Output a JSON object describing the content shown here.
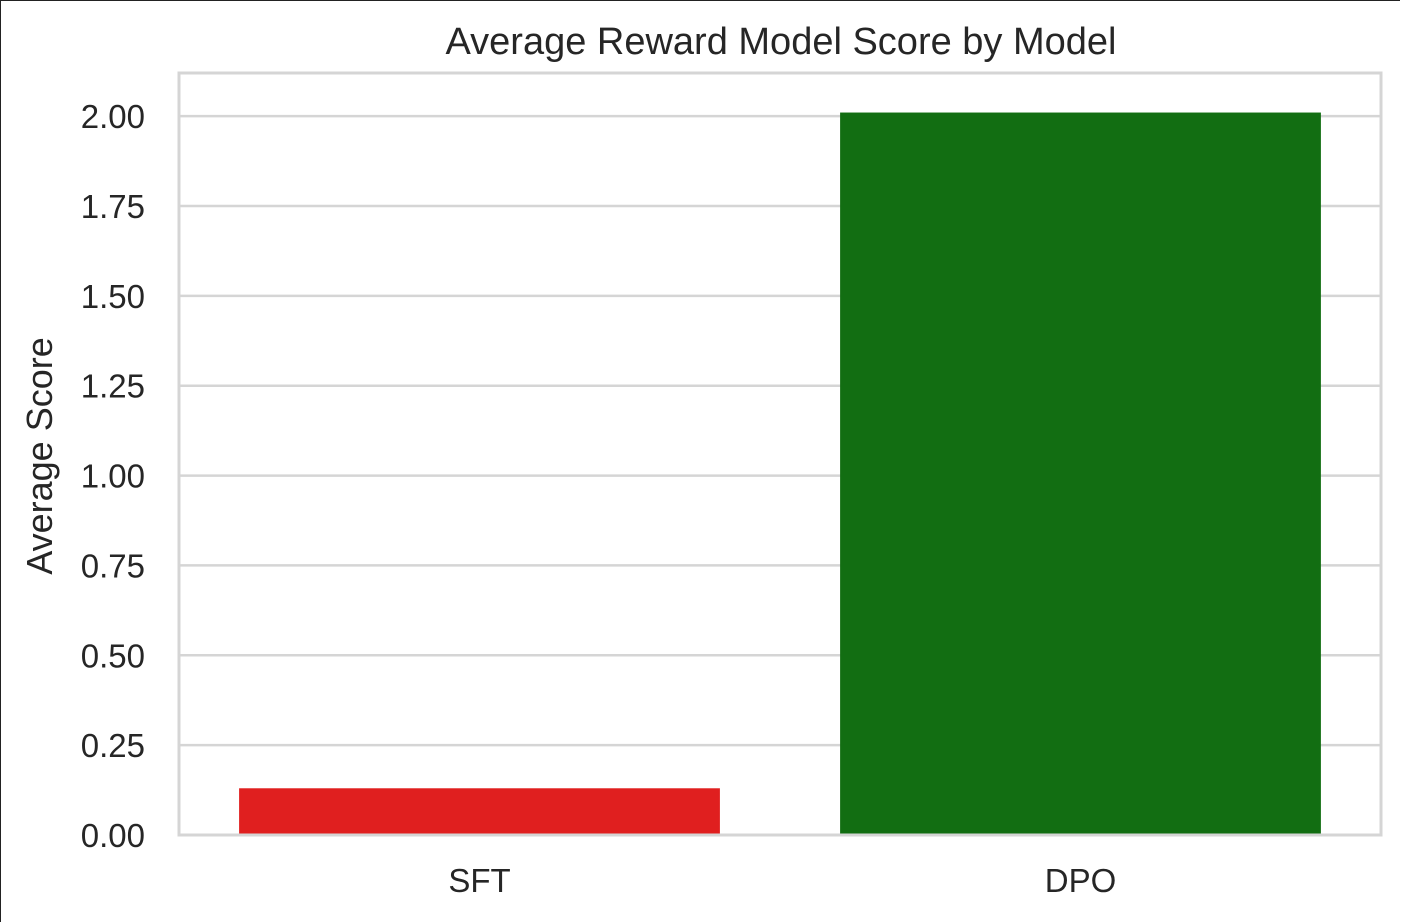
{
  "chart_data": {
    "type": "bar",
    "title": "Average Reward Model Score by Model",
    "xlabel": "",
    "ylabel": "Average Score",
    "categories": [
      "SFT",
      "DPO"
    ],
    "values": [
      0.13,
      2.01
    ],
    "colors": [
      "#e01f1f",
      "#126e12"
    ],
    "ylim": [
      0,
      2.12
    ],
    "yticks": [
      0.0,
      0.25,
      0.5,
      0.75,
      1.0,
      1.25,
      1.5,
      1.75,
      2.0
    ],
    "ytick_labels": [
      "0.00",
      "0.25",
      "0.50",
      "0.75",
      "1.00",
      "1.25",
      "1.50",
      "1.75",
      "2.00"
    ],
    "grid": true,
    "grid_axis": "y",
    "legend": false
  }
}
